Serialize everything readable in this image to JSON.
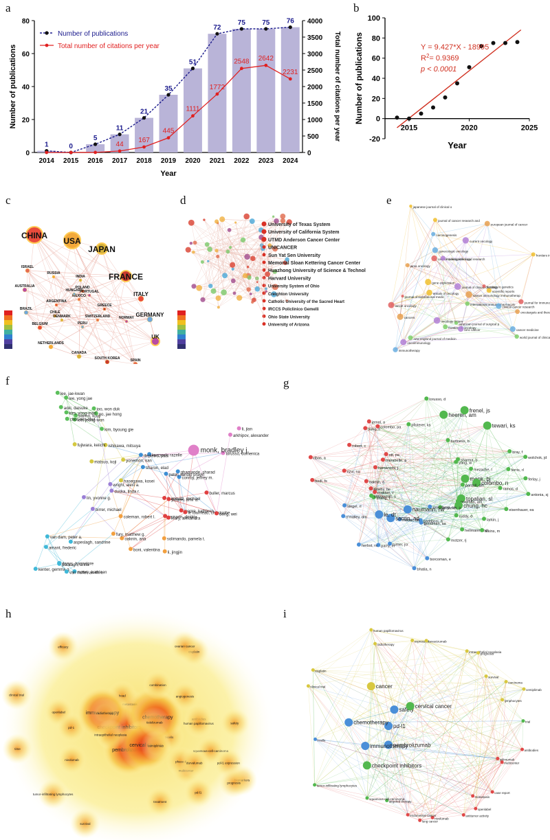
{
  "panel_labels": {
    "a": "a",
    "b": "b",
    "c": "c",
    "d": "d",
    "e": "e",
    "f": "f",
    "g": "g",
    "h": "h",
    "i": "i"
  },
  "chart_data": [
    {
      "type": "bar",
      "panel": "a",
      "categories": [
        "2014",
        "2015",
        "2016",
        "2017",
        "2018",
        "2019",
        "2020",
        "2021",
        "2022",
        "2023",
        "2024"
      ],
      "series": [
        {
          "name": "Number of publications",
          "values": [
            1,
            0,
            5,
            11,
            21,
            35,
            51,
            72,
            75,
            75,
            76
          ],
          "color": "#1a1a8c"
        },
        {
          "name": "Total number of citations per year",
          "values": [
            0,
            0,
            2,
            44,
            167,
            445,
            1111,
            1772,
            2548,
            2642,
            2231
          ],
          "color": "#e02020"
        }
      ],
      "bar_color": "#b9b4d8",
      "citation_labels": [
        "",
        "",
        "",
        "44",
        "167",
        "445",
        "1111",
        "1772",
        "2548",
        "2642",
        "2231"
      ],
      "xlabel": "Year",
      "ylabel": "Number of publications",
      "y2label": "Total number of citations per year",
      "ylim": [
        0,
        80
      ],
      "y2lim": [
        0,
        4000
      ],
      "yticks": [
        0,
        20,
        40,
        60,
        80
      ],
      "y2ticks": [
        0,
        500,
        1000,
        1500,
        2000,
        2500,
        3000,
        3500,
        4000
      ],
      "legend": "top-left"
    },
    {
      "type": "scatter",
      "panel": "b",
      "x": [
        2014,
        2015,
        2016,
        2017,
        2018,
        2019,
        2020,
        2021,
        2022,
        2023,
        2024
      ],
      "y": [
        1,
        0,
        5,
        11,
        21,
        35,
        51,
        72,
        75,
        75,
        76
      ],
      "fit": {
        "slope": 9.427,
        "intercept": -18995,
        "x_range": [
          2014,
          2024.3
        ],
        "color": "#d03020"
      },
      "annotation": {
        "equation": "Y = 9.427*X - 18995",
        "r2_prefix": "R",
        "r2_sup": "2",
        "r2_value": "= 0.9369",
        "p": "p < 0.0001"
      },
      "xlabel": "Year",
      "ylabel": "Number of publications",
      "xlim": [
        2013,
        2025
      ],
      "ylim": [
        -20,
        100
      ],
      "xticks": [
        2015,
        2020,
        2025
      ],
      "yticks": [
        -20,
        0,
        20,
        40,
        60,
        80,
        100
      ]
    }
  ],
  "panel_c": {
    "countries": [
      "CHINA",
      "USA",
      "JAPAN",
      "FRANCE",
      "ISRAEL",
      "AUSTRALIA",
      "BRAZIL",
      "BELGIUM",
      "NETHERLANDS",
      "CANADA",
      "SOUTH KOREA",
      "SPAIN",
      "UK",
      "GERMANY",
      "ITALY",
      "RUSSIA",
      "INDIA",
      "POLAND",
      "MEXICO",
      "PORTUGAL",
      "HUNGARY",
      "ARGENTINA",
      "CHILE",
      "DENMARK",
      "GREECE",
      "SWITZERLAND",
      "NORWAY",
      "PERU"
    ]
  },
  "panel_d": {
    "institutions": [
      "University of Texas System",
      "University of California System",
      "UTMD Anderson Cancer Center",
      "UNICANCER",
      "Sun Yat Sen University",
      "Memorial Sloan Kettering Cancer Center",
      "Huazhong University of Science & Technology",
      "Harvard University",
      "University System of Ohio",
      "Creighton University",
      "Catholic University of the Sacred Heart",
      "IRCCS Policlinico Gemelli",
      "Ohio State University",
      "University of Arizona"
    ]
  },
  "panel_e": {
    "journals": [
      "oncoimmunology",
      "scientific reports",
      "international immunopharmacolo",
      "journal of translational medic",
      "cancer medicine",
      "cancers",
      "oncology letters",
      "frontiers in immunology",
      "frontiers in oncology",
      "lancet oncology",
      "gynecologic oncology",
      "european journal of cancer",
      "journal of clinical oncology",
      "japanese journal of clinical o",
      "new england journal of medicin",
      "journal for immunotherapy of c",
      "clinical cancer research",
      "jama oncology",
      "current oncology",
      "annals of oncology",
      "world journal of clinical case",
      "frontiers in genetics",
      "immunotherapy",
      "cancer immunology immunotherap",
      "bmc cancer",
      "journal of cancer research and",
      "american journal of surgical p",
      "cancer management and research",
      "carcinogenesis",
      "oncotargets and therapy",
      "modern pathology",
      "gene expression"
    ]
  },
  "panel_f": {
    "authors": [
      "banno, kouji",
      "aoki, daisuke",
      "lee, jae-kwan",
      "no, jae hong",
      "kim, byoung gie",
      "lee, yong jae",
      "lee, jeong-won",
      "kim, yong-man",
      "choi, min chul",
      "joo, won duk",
      "yonemori, kan",
      "ishikawa, mitsuya",
      "fujiwara, keiichi",
      "hasegawa, kosei",
      "matsuo, koji",
      "birrer, michael",
      "lin, yvonne g.",
      "duska, linda r.",
      "wright, alexi a.",
      "kurzrock, razelle",
      "conroy, jeffrey m.",
      "depietro, paul",
      "patel, sandip pravin",
      "sharon, elad",
      "ghamande, sharad",
      "arkhipov, alexander",
      "lorusso, domenica",
      "monk, bradley j.",
      "li, jian",
      "zamarin, dmitriy",
      "moore, kathleen",
      "le tourneau, christophe",
      "leary, alexandra",
      "deng, wei",
      "buller, marcus",
      "frumovitz, michael",
      "jazaeri, amir a.",
      "coleman, robert l.",
      "oaknin, ana",
      "boni, valentina",
      "fury, matthew g.",
      "li, jingjin",
      "solimando, pamela t.",
      "moore, kathleen",
      "paccagn, anna",
      "kenter, gemma g.",
      "denys, hannelore",
      "amant, frederic",
      "van dam, peter a.",
      "aspeslagh, sandrine",
      "van nuffel, an m. t."
    ]
  },
  "panel_g": {
    "authors": [
      "antonia, sj",
      "eisenhauer, ea",
      "larkin, j",
      "hellmann, md",
      "atkins, m",
      "motzer, rj",
      "borcoman, e",
      "bhatia, n",
      "turner, jcr",
      "parry, m",
      "herbst, rs",
      "o'malley, dm",
      "siegel, rl",
      "hodi, fs",
      "rizvi, na",
      "ribas, a",
      "robert, c",
      "sung, h",
      "jemal, a",
      "colombo, pa",
      "pfisterer, ks",
      "lorusso, d",
      "heeren, am",
      "frenel, js",
      "tewari, ks",
      "bray, f",
      "wolchok, jd",
      "ferris, rl",
      "ferlay, j",
      "ramos, d",
      "burtness, b",
      "sharma, p",
      "yang, w",
      "mezache, l",
      "monk, bj",
      "colombo, n",
      "pardoll, dm",
      "topalian, sl",
      "nowman, am",
      "chung, hc",
      "ruddy, d",
      "brahmer, jr",
      "rosenberg, se",
      "goodman, aa",
      "gaddocci, a",
      "naumann, rw",
      "moore, dh",
      "santin, ad",
      "le, dt",
      "zhang, l",
      "makker, v",
      "stevanovic, s",
      "newby, be",
      "oaknin, a",
      "hamanishi, j",
      "ott, pa",
      "marabelle, a"
    ]
  },
  "panel_h": {
    "keywords": [
      "ipilimumab",
      "metastasis",
      "antibodies",
      "nivolumab",
      "openlabel",
      "multicenter",
      "t-cells",
      "head",
      "squamous-cell-carcinoma",
      "lung cancer",
      "pd-1",
      "biomarkers",
      "checkpoint inhibitors",
      "clinical trial",
      "pembrolizumab",
      "cancer",
      "treatment",
      "phase-ii",
      "durvalumab",
      "human papillomavirus",
      "angiogenesis",
      "immunotherapy",
      "chemotherapy",
      "cisplatin",
      "pd-l1 expression",
      "ovarian cancer",
      "radiotherapy",
      "pd-l1",
      "cervical cancer",
      "safety",
      "combination",
      "tumor-infiltrating lymphocytes",
      "tislelizumab",
      "intraepithelial neoplasia",
      "prognosis",
      "survival",
      "efficacy",
      "cemiplimab",
      "time"
    ]
  },
  "panel_i": {
    "keywords": [
      "antibodies",
      "ipilimumab",
      "multicenter",
      "case report",
      "metastasis",
      "openlabel",
      "antitumor activity",
      "nivolumab",
      "lung cancer",
      "endometrial cancer",
      "targeted therapy",
      "squamous-cell-carcinoma",
      "checkpoint inhibitors",
      "pembrolizumab",
      "tumor-infiltrating lymphocytes",
      "immunotherapy",
      "t-cells",
      "pd-l1",
      "chemotherapy",
      "clinical trial",
      "cisplatin",
      "safety",
      "cancer",
      "human papillomavirus",
      "radiotherapy",
      "cervical cancer",
      "expression",
      "bevacizumab",
      "intraepithelial neoplasia",
      "prognosis",
      "survival",
      "carcinoma",
      "cemiplimab",
      "lymphocytes",
      "trial"
    ]
  }
}
